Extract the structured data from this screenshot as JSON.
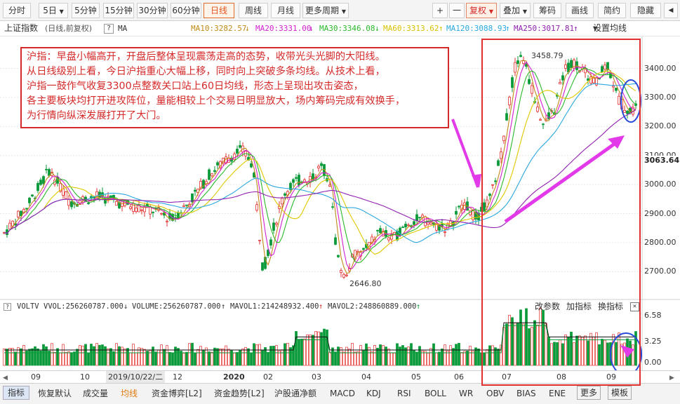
{
  "toolbar": {
    "periods": [
      "分时",
      "5日",
      "5分钟",
      "15分钟",
      "30分钟",
      "60分钟",
      "日线",
      "周线",
      "月线",
      "更多周期"
    ],
    "plus": "+",
    "minus": "一",
    "adjust": "复权",
    "overlay": "叠加",
    "chips": "筹码",
    "draw": "画线",
    "simple": "简约",
    "hide": "隐藏"
  },
  "info": {
    "index_name": "上证指数",
    "mode": "(日线,前复权)",
    "help": "?",
    "indicator": "MA",
    "ma10": "MA10:3282.57",
    "ma20": "MA20:3331.00",
    "ma30": "MA30:3346.08",
    "ma60": "MA60:3313.62",
    "ma120": "MA120:3088.93",
    "ma250": "MA250:3017.81",
    "settings": "设置均线"
  },
  "colors": {
    "up": "#e23131",
    "down": "#0b9a3a",
    "ma10": "#c08a1a",
    "ma20": "#d020d0",
    "ma30": "#2ab82a",
    "ma60": "#e0c800",
    "ma120": "#2aa8e0",
    "ma250": "#9020b0"
  },
  "price_axis": [
    "3400.00",
    "3300.00",
    "3200.00",
    "3100.00",
    "3000.00",
    "2900.00",
    "2800.00",
    "2700.00"
  ],
  "price_markers": {
    "high": "3458.79",
    "low": "2646.80",
    "current": "3063.64"
  },
  "annotation": [
    "沪指：早盘小幅高开，开盘后整体呈现震荡走高的态势，收带光头光脚的大阳线。",
    "从日线级别上看，今日沪指重心大幅上移，同时向上突破多条均线。从技术上看，",
    "沪指一鼓作气收复3300点整数关口站上60日均线，形态上呈现出攻击姿态，",
    "各主要板块均打开进攻阵位，量能相较上个交易日明显放大，场内筹码完成有效换手，",
    "为行情向纵深发展打开了大门。"
  ],
  "volume": {
    "name": "VOLTV",
    "vvol": "VVOL:256260787.000",
    "volume": "VOLUME:256260787.000",
    "mavol1": "MAVOL1:214248932.400",
    "mavol2": "MAVOL2:248860889.000",
    "params": "改参数",
    "swap": "加指标",
    "change": "换指标",
    "close": "✕",
    "axis": [
      "6.58",
      "3.25",
      "0.00"
    ]
  },
  "xaxis": [
    "09",
    "10",
    "2019/10/22/二",
    "12",
    "2020",
    "02",
    "03",
    "04",
    "05",
    "06",
    "07",
    "08",
    "09"
  ],
  "bottom_tabs": [
    "指标",
    "恢复默认",
    "成交量",
    "均线",
    "资金博弈[L2]",
    "资金趋势[L2]",
    "沪股通净额",
    "MACD",
    "KDJ",
    "RSI",
    "BOLL",
    "WR",
    "OBV",
    "BIAS",
    "ENE",
    "更多",
    "模板"
  ]
}
